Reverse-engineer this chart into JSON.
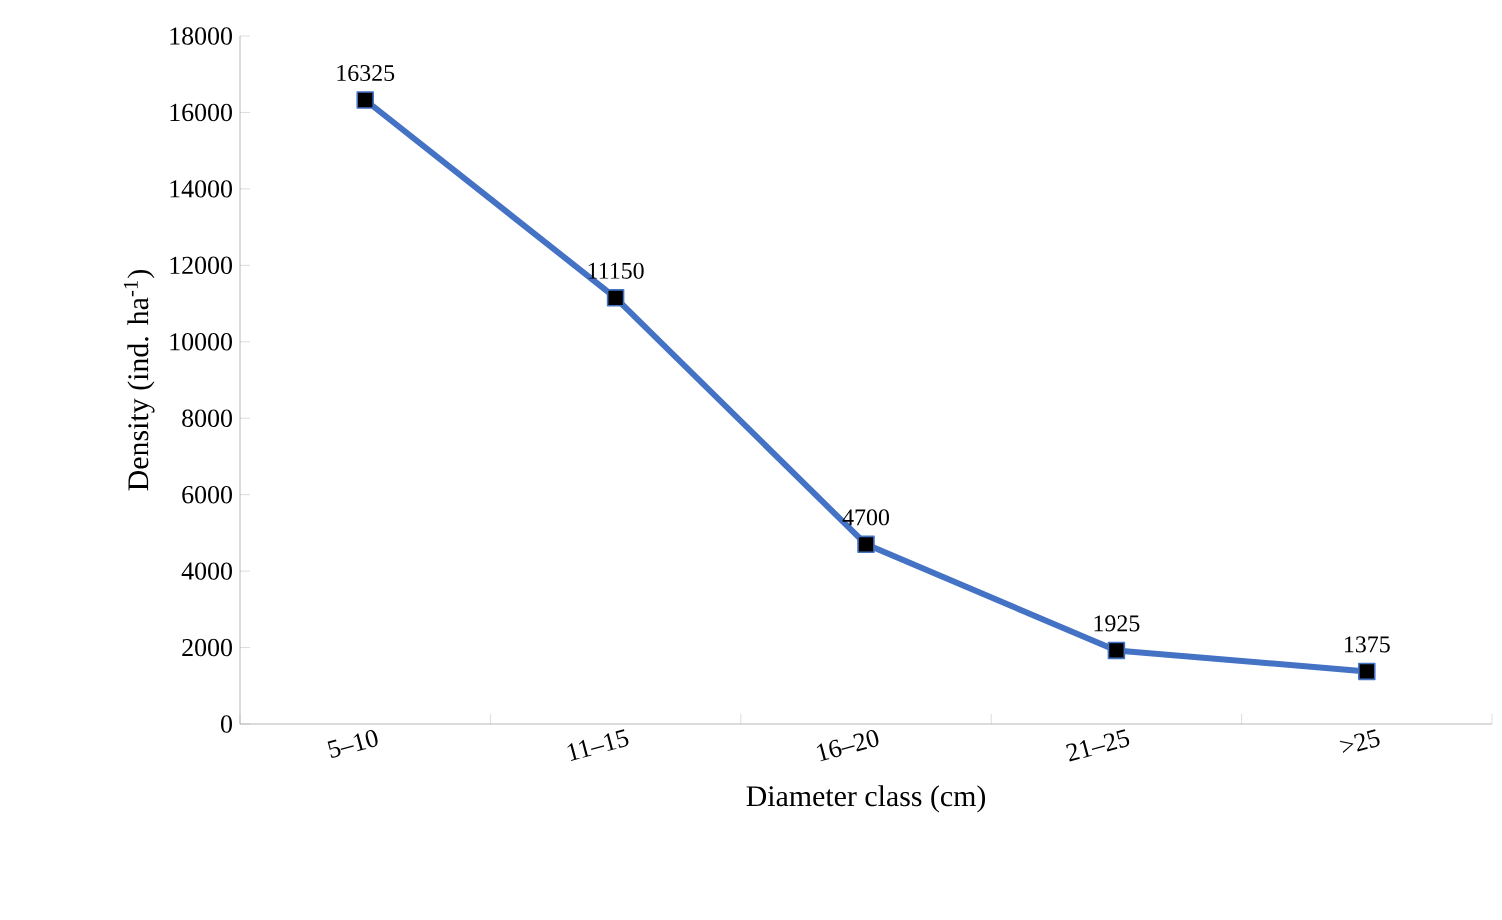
{
  "chart_data": {
    "type": "line",
    "xlabel": "Diameter class (cm)",
    "ylabel": "Density (ind. ha$^{-1}$)",
    "categories": [
      "5–10",
      "11–15",
      "16–20",
      "21–25",
      ">25"
    ],
    "values": [
      16325,
      11150,
      4700,
      1925,
      1375
    ],
    "color": "#4472c4",
    "marker": "square",
    "line_style": "solid",
    "data_labels": true,
    "ylim": [
      0,
      18000
    ],
    "yticks": [
      0,
      2000,
      4000,
      6000,
      8000,
      10000,
      12000,
      14000,
      16000,
      18000
    ]
  }
}
